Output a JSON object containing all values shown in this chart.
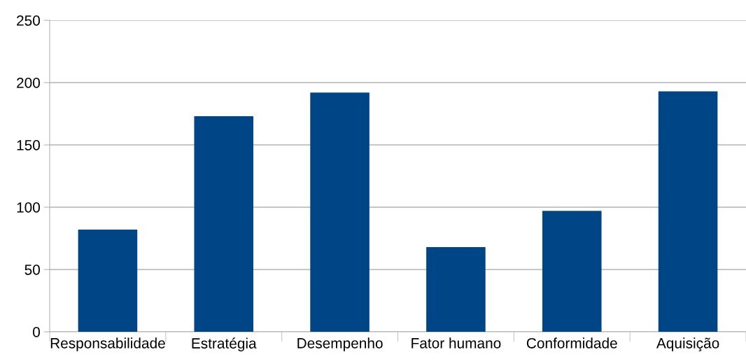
{
  "chart_data": {
    "type": "bar",
    "categories": [
      "Responsabilidade",
      "Estratégia",
      "Desempenho",
      "Fator humano",
      "Conformidade",
      "Aquisição"
    ],
    "values": [
      82,
      173,
      192,
      68,
      97,
      193
    ],
    "color": "#004586",
    "ylim": [
      0,
      250
    ],
    "yticks": [
      0,
      50,
      100,
      150,
      200,
      250
    ],
    "grid": "y",
    "legend": false
  }
}
